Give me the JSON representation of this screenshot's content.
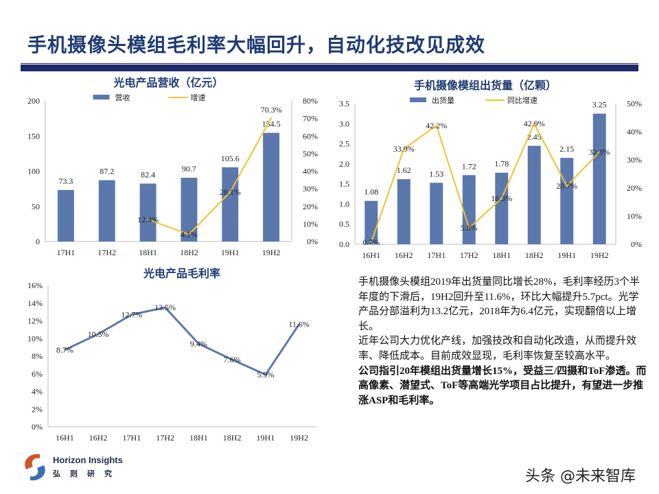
{
  "page": {
    "title": "手机摄像头模组毛利率大幅回升，自动化技改见成效"
  },
  "text": {
    "p1": "手机摄像头模组2019年出货量同比增长28%，毛利率经历3个半年度的下滑后，19H2回升至11.6%，环比大幅提升5.7pct。光学产品分部溢利为13.2亿元，2018年为6.4亿元，实现翻倍以上增长。",
    "p2": "近年公司大力优化产线，加强技改和自动化改造，从而提升效率、降低成本。目前成效显现，毛利率恢复至较高水平。",
    "p3": "公司指引20年模组出货量增长15%，受益三/四摄和ToF渗透。而高像素、潜望式、ToF等高端光学项目占比提升，有望进一步推涨ASP和毛利率。"
  },
  "footer": {
    "logo_en": "Horizon Insights",
    "logo_cn": "弘则研究",
    "watermark": "头条 @未来智库"
  },
  "colors": {
    "bar": "#5b78ad",
    "line": "#f2c12e",
    "title": "#1f3b73"
  },
  "chart_data": [
    {
      "type": "bar+line",
      "title": "光电产品营收（亿元）",
      "categories": [
        "17H1",
        "17H2",
        "18H1",
        "18H2",
        "19H1",
        "19H2"
      ],
      "series": [
        {
          "name": "营收",
          "type": "bar",
          "axis": "left",
          "values": [
            73.3,
            87.2,
            82.4,
            90.7,
            105.6,
            154.5
          ],
          "labels": [
            "73.3",
            "87.2",
            "82.4",
            "90.7",
            "105.6",
            "154.5"
          ]
        },
        {
          "name": "增速",
          "type": "line",
          "axis": "right",
          "values": [
            null,
            null,
            12.4,
            4.1,
            28.1,
            70.3
          ],
          "labels": [
            "",
            "",
            "12.4%",
            "4.1%",
            "28.1%",
            "70.3%"
          ]
        }
      ],
      "ylim": [
        0,
        200
      ],
      "yticks": [
        "0",
        "50",
        "100",
        "150",
        "200"
      ],
      "y2lim": [
        0,
        80
      ],
      "y2ticks": [
        "0%",
        "10%",
        "20%",
        "30%",
        "40%",
        "50%",
        "60%",
        "70%",
        "80%"
      ],
      "legend": "top"
    },
    {
      "type": "bar+line",
      "title": "手机摄像模组出货量（亿颗）",
      "categories": [
        "16H1",
        "16H2",
        "17H1",
        "17H2",
        "18H1",
        "18H2",
        "19H1",
        "19H2"
      ],
      "series": [
        {
          "name": "出货量",
          "type": "bar",
          "axis": "left",
          "values": [
            1.08,
            1.62,
            1.53,
            1.72,
            1.78,
            2.45,
            2.15,
            3.25
          ],
          "labels": [
            "1.08",
            "1.62",
            "1.53",
            "1.72",
            "1.78",
            "2.45",
            "2.15",
            "3.25"
          ]
        },
        {
          "name": "同比增速",
          "type": "line",
          "axis": "right",
          "values": [
            0.7,
            33.9,
            42.2,
            5.8,
            16.3,
            42.9,
            20.7,
            32.8
          ],
          "labels": [
            "0.7%",
            "33.9%",
            "42.2%",
            "5.8%",
            "16.3%",
            "42.9%",
            "20.7%",
            "32.8%"
          ]
        }
      ],
      "ylim": [
        0,
        3.5
      ],
      "yticks": [
        "0.0",
        "0.5",
        "1.0",
        "1.5",
        "2.0",
        "2.5",
        "3.0",
        "3.5"
      ],
      "y2lim": [
        0,
        50
      ],
      "y2ticks": [
        "0%",
        "10%",
        "20%",
        "30%",
        "40%",
        "50%"
      ],
      "legend": "top"
    },
    {
      "type": "line",
      "title": "光电产品毛利率",
      "categories": [
        "16H1",
        "16H2",
        "17H1",
        "17H2",
        "18H1",
        "18H2",
        "19H1",
        "19H2"
      ],
      "series": [
        {
          "type": "line",
          "axis": "left",
          "values": [
            8.7,
            10.5,
            12.7,
            13.5,
            9.4,
            7.6,
            5.9,
            11.6
          ],
          "labels": [
            "8.7%",
            "10.5%",
            "12.7%",
            "13.5%",
            "9.4%",
            "7.6%",
            "5.9%",
            "11.6%"
          ]
        }
      ],
      "ylim": [
        0,
        16
      ],
      "yticks": [
        "0%",
        "2%",
        "4%",
        "6%",
        "8%",
        "10%",
        "12%",
        "14%",
        "16%"
      ]
    }
  ]
}
